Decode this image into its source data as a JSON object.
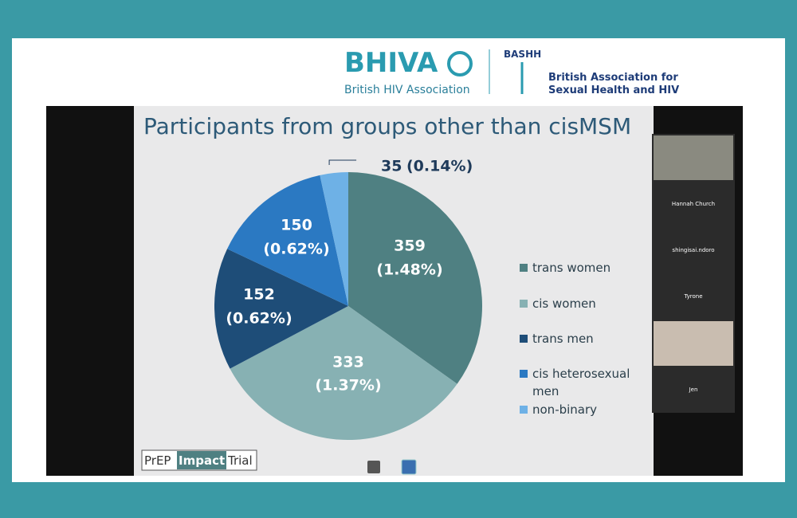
{
  "header": {
    "bhiva": "BHIVA",
    "bhiva_sub": "British HIV Association",
    "bashh": "BASHH",
    "bashh_sub": [
      "British Association for",
      "Sexual Health and HIV"
    ]
  },
  "chart_data": {
    "type": "pie",
    "title": "Participants from groups other than cisMSM",
    "categories": [
      "trans women",
      "cis women",
      "trans men",
      "cis heterosexual men",
      "non-binary"
    ],
    "values": [
      359,
      333,
      152,
      150,
      35
    ],
    "percent_labels": [
      "(1.48%)",
      "(1.37%)",
      "(0.62%)",
      "(0.62%)",
      "(0.14%)"
    ],
    "colors": [
      "#4f8082",
      "#87b1b3",
      "#1e4d78",
      "#2b79c2",
      "#6eb1e6"
    ],
    "label_colors": [
      "#ffffff",
      "#ffffff",
      "#ffffff",
      "#ffffff",
      "#1e3a5a"
    ]
  },
  "footer_logo": [
    "PrEP",
    "Impact",
    "Trial"
  ],
  "participants": [
    "Hannah Church",
    "shingisai.ndoro",
    "Tyrone",
    "Jen"
  ]
}
